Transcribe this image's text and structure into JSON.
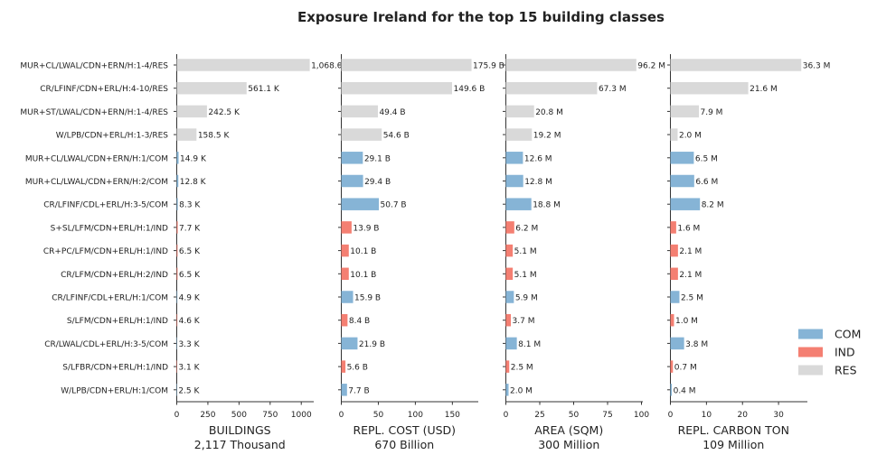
{
  "chart_data": {
    "type": "bar",
    "orientation": "horizontal",
    "title": "Exposure Ireland for the top 15 building classes",
    "categories": [
      "MUR+CL/LWAL/CDN+ERN/H:1-4/RES",
      "CR/LFINF/CDN+ERL/H:4-10/RES",
      "MUR+ST/LWAL/CDN+ERN/H:1-4/RES",
      "W/LPB/CDN+ERL/H:1-3/RES",
      "MUR+CL/LWAL/CDN+ERN/H:1/COM",
      "MUR+CL/LWAL/CDN+ERN/H:2/COM",
      "CR/LFINF/CDL+ERL/H:3-5/COM",
      "S+SL/LFM/CDN+ERL/H:1/IND",
      "CR+PC/LFM/CDN+ERL/H:1/IND",
      "CR/LFM/CDN+ERL/H:2/IND",
      "CR/LFINF/CDL+ERL/H:1/COM",
      "S/LFM/CDN+ERL/H:1/IND",
      "CR/LWAL/CDL+ERL/H:3-5/COM",
      "S/LFBR/CDN+ERL/H:1/IND",
      "W/LPB/CDN+ERL/H:1/COM"
    ],
    "occupancy": [
      "RES",
      "RES",
      "RES",
      "RES",
      "COM",
      "COM",
      "COM",
      "IND",
      "IND",
      "IND",
      "COM",
      "IND",
      "COM",
      "IND",
      "COM"
    ],
    "legend": {
      "placement": "lower-right",
      "entries": [
        {
          "name": "COM",
          "color": "#86b4d6"
        },
        {
          "name": "IND",
          "color": "#f47f72"
        },
        {
          "name": "RES",
          "color": "#d9d9d9"
        }
      ]
    },
    "panels": [
      {
        "xlabel": "BUILDINGS",
        "subtitle": "2,117 Thousand",
        "xlim": [
          0,
          1100
        ],
        "ticks": [
          0,
          250,
          500,
          750,
          1000
        ],
        "tick_labels": [
          "0",
          "250",
          "500",
          "750",
          "1000"
        ],
        "values": [
          1068.0,
          561.1,
          242.5,
          158.5,
          14.9,
          12.8,
          8.3,
          7.7,
          6.5,
          6.5,
          4.9,
          4.6,
          3.3,
          3.1,
          2.5
        ],
        "labels": [
          "1,068.0 K",
          "561.1 K",
          "242.5 K",
          "158.5 K",
          "14.9 K",
          "12.8 K",
          "8.3 K",
          "7.7 K",
          "6.5 K",
          "6.5 K",
          "4.9 K",
          "4.6 K",
          "3.3 K",
          "3.1 K",
          "2.5 K"
        ]
      },
      {
        "xlabel": "REPL. COST (USD)",
        "subtitle": "670 Billion",
        "xlim": [
          0,
          185
        ],
        "ticks": [
          0,
          50,
          100,
          150
        ],
        "tick_labels": [
          "0",
          "50",
          "100",
          "150"
        ],
        "values": [
          175.9,
          149.6,
          49.4,
          54.6,
          29.1,
          29.4,
          50.7,
          13.9,
          10.1,
          10.1,
          15.9,
          8.4,
          21.9,
          5.6,
          7.7
        ],
        "labels": [
          "175.9 B",
          "149.6 B",
          "49.4 B",
          "54.6 B",
          "29.1 B",
          "29.4 B",
          "50.7 B",
          "13.9 B",
          "10.1 B",
          "10.1 B",
          "15.9 B",
          "8.4 B",
          "21.9 B",
          "5.6 B",
          "7.7 B"
        ]
      },
      {
        "xlabel": "AREA (SQM)",
        "subtitle": "300 Million",
        "xlim": [
          0,
          101
        ],
        "ticks": [
          0,
          25,
          50,
          75,
          100
        ],
        "tick_labels": [
          "0",
          "25",
          "50",
          "75",
          "100"
        ],
        "values": [
          96.2,
          67.3,
          20.8,
          19.2,
          12.6,
          12.8,
          18.8,
          6.2,
          5.1,
          5.1,
          5.9,
          3.7,
          8.1,
          2.5,
          2.0
        ],
        "labels": [
          "96.2 M",
          "67.3 M",
          "20.8 M",
          "19.2 M",
          "12.6 M",
          "12.8 M",
          "18.8 M",
          "6.2 M",
          "5.1 M",
          "5.1 M",
          "5.9 M",
          "3.7 M",
          "8.1 M",
          "2.5 M",
          "2.0 M"
        ]
      },
      {
        "xlabel": "REPL. CARBON TON",
        "subtitle": "109 Million",
        "xlim": [
          0,
          38
        ],
        "ticks": [
          0,
          10,
          20,
          30
        ],
        "tick_labels": [
          "0",
          "10",
          "20",
          "30"
        ],
        "values": [
          36.3,
          21.6,
          7.9,
          2.0,
          6.5,
          6.6,
          8.2,
          1.6,
          2.1,
          2.1,
          2.5,
          1.0,
          3.8,
          0.7,
          0.4
        ],
        "labels": [
          "36.3 M",
          "21.6 M",
          "7.9 M",
          "2.0 M",
          "6.5 M",
          "6.6 M",
          "8.2 M",
          "1.6 M",
          "2.1 M",
          "2.1 M",
          "2.5 M",
          "1.0 M",
          "3.8 M",
          "0.7 M",
          "0.4 M"
        ]
      }
    ]
  }
}
